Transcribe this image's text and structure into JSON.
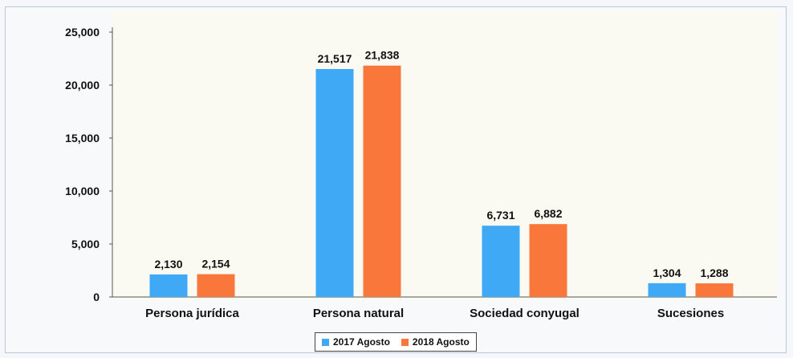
{
  "chart_data": {
    "type": "bar",
    "title": "",
    "xlabel": "",
    "ylabel": "",
    "categories": [
      "Persona jurídica",
      "Persona natural",
      "Sociedad conyugal",
      "Sucesiones"
    ],
    "series": [
      {
        "name": "2017 Agosto",
        "values": [
          2130,
          21517,
          6731,
          1304
        ],
        "labels": [
          "2,130",
          "21,517",
          "6,731",
          "1,304"
        ],
        "color": "#3fa9f5"
      },
      {
        "name": "2018 Agosto",
        "values": [
          2154,
          21838,
          6882,
          1288
        ],
        "labels": [
          "2,154",
          "21,838",
          "6,882",
          "1,288"
        ],
        "color": "#f9773a"
      }
    ],
    "ylim": [
      0,
      25000
    ],
    "yticks": [
      0,
      5000,
      10000,
      15000,
      20000,
      25000
    ],
    "ytick_labels": [
      "0",
      "5,000",
      "10,000",
      "15,000",
      "20,000",
      "25,000"
    ],
    "grid": false,
    "legend_position": "bottom"
  }
}
